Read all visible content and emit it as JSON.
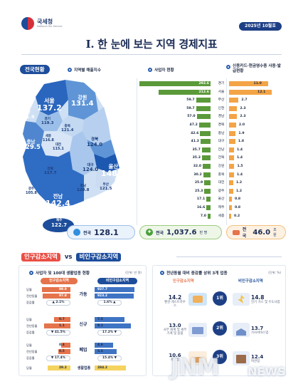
{
  "header": {
    "agency": "국세청",
    "agency_en": "National Tax Service",
    "date": "2025년 10월호",
    "title": "I. 한 눈에 보는 지역 경제지표"
  },
  "national": {
    "section": "전국현황",
    "sub1": "지역별 매출지수",
    "sub2": "사업자 현황",
    "sub3": "신용카드·현금영수증 사용·발급현황",
    "map_regions": [
      {
        "name": "서울",
        "value": "137.2"
      },
      {
        "name": "인천",
        "value": "121.9"
      },
      {
        "name": "경기",
        "value": "119.3"
      },
      {
        "name": "강원",
        "value": "131.4"
      },
      {
        "name": "충북",
        "value": "121.4"
      },
      {
        "name": "세종",
        "value": "116.8"
      },
      {
        "name": "대전",
        "value": "115.1"
      },
      {
        "name": "충남",
        "value": "129.5"
      },
      {
        "name": "경북",
        "value": "124.0"
      },
      {
        "name": "전북",
        "value": "117.7"
      },
      {
        "name": "대구",
        "value": "124.0"
      },
      {
        "name": "울산",
        "value": "148.9"
      },
      {
        "name": "광주",
        "value": "105.8"
      },
      {
        "name": "경남",
        "value": "120.8"
      },
      {
        "name": "부산",
        "value": "121.5"
      },
      {
        "name": "전남",
        "value": "142.4"
      },
      {
        "name": "제주",
        "value": "122.7"
      }
    ],
    "total_sales_label": "전국",
    "total_sales_value": "128.1",
    "total_biz_label": "전국",
    "total_biz_value": "1,037.6",
    "total_biz_unit": "만 명",
    "total_card_label": "전국",
    "total_card_value": "46.0",
    "total_card_unit": "조원",
    "biz_rows": [
      {
        "region": "경기",
        "biz": "292.6",
        "biz_num": 292.6,
        "card": "11.0",
        "card_num": 11.0
      },
      {
        "region": "서울",
        "biz": "212.6",
        "biz_num": 212.6,
        "card": "12.1",
        "card_num": 12.1
      },
      {
        "region": "부산",
        "biz": "59.7",
        "biz_num": 59.7,
        "card": "2.7",
        "card_num": 2.7
      },
      {
        "region": "인천",
        "biz": "59.7",
        "biz_num": 59.7,
        "card": "2.3",
        "card_num": 2.3
      },
      {
        "region": "경남",
        "biz": "57.0",
        "biz_num": 57.0,
        "card": "2.3",
        "card_num": 2.3
      },
      {
        "region": "경북",
        "biz": "47.2",
        "biz_num": 47.2,
        "card": "2.0",
        "card_num": 2.0
      },
      {
        "region": "충남",
        "biz": "42.6",
        "biz_num": 42.6,
        "card": "1.9",
        "card_num": 1.9
      },
      {
        "region": "대구",
        "biz": "41.3",
        "biz_num": 41.3,
        "card": "1.8",
        "card_num": 1.8
      },
      {
        "region": "전남",
        "biz": "35.7",
        "biz_num": 35.7,
        "card": "1.4",
        "card_num": 1.4
      },
      {
        "region": "전북",
        "biz": "35.3",
        "biz_num": 35.3,
        "card": "1.4",
        "card_num": 1.4
      },
      {
        "region": "강원",
        "biz": "32.0",
        "biz_num": 32.0,
        "card": "1.5",
        "card_num": 1.5
      },
      {
        "region": "충북",
        "biz": "30.2",
        "biz_num": 30.2,
        "card": "1.4",
        "card_num": 1.4
      },
      {
        "region": "대전",
        "biz": "25.9",
        "biz_num": 25.9,
        "card": "1.2",
        "card_num": 1.2
      },
      {
        "region": "광주",
        "biz": "25.3",
        "biz_num": 25.3,
        "card": "1.2",
        "card_num": 1.2
      },
      {
        "region": "울산",
        "biz": "17.1",
        "biz_num": 17.1,
        "card": "0.8",
        "card_num": 0.8
      },
      {
        "region": "제주",
        "biz": "16.6",
        "biz_num": 16.6,
        "card": "0.8",
        "card_num": 0.8
      },
      {
        "region": "세종",
        "biz": "7.0",
        "biz_num": 7.0,
        "card": "0.2",
        "card_num": 0.2
      }
    ]
  },
  "compare": {
    "banner_a": "인구감소지역",
    "banner_vs": "vs",
    "banner_b": "비인구감소지역",
    "left_title": "사업자 및 100대 생활업종 현황",
    "left_unit": "(단위: 만 명)",
    "left_head_a": "인구감소지역",
    "left_head_b": "비인구감소지역",
    "groups": [
      {
        "category": "가동",
        "rows": [
          {
            "label": "당월",
            "a": "99.9",
            "a_num": 99.9,
            "b": "937.7",
            "b_num": 937.7
          },
          {
            "label": "전년동월",
            "a": "97.8",
            "a_num": 97.8,
            "b": "923.2",
            "b_num": 923.2
          }
        ],
        "row3_label": "증감률",
        "change_a": "▲ 2.1%",
        "change_b": "1.6% ▲"
      },
      {
        "category": "신규",
        "rows": [
          {
            "label": "당월",
            "a": "0.7",
            "a_num": 0.7,
            "b": "7.5",
            "b_num": 7.5
          },
          {
            "label": "전년동월",
            "a": "1.1",
            "a_num": 1.1,
            "b": "9.1",
            "b_num": 9.1
          }
        ],
        "row3_label": "증감률",
        "change_a": "▼ 41.5%",
        "change_b": "17.2% ▼"
      },
      {
        "category": "폐업",
        "rows": [
          {
            "label": "당월",
            "a": "0.4",
            "a_num": 0.4,
            "b": "4.6",
            "b_num": 4.6
          },
          {
            "label": "전년동월",
            "a": "0.5",
            "a_num": 0.5,
            "b": "5.5",
            "b_num": 5.5
          }
        ],
        "row3_label": "증감률",
        "change_a": "▼ 17.4%",
        "change_b": "15.4% ▼"
      }
    ],
    "life": {
      "label": "당월",
      "category": "생활업종",
      "a": "29.2",
      "a_num": 29.2,
      "b": "284.2",
      "b_num": 284.2
    },
    "right_title": "전년동월 대비 증감률 상위 3개 업종",
    "right_unit": "(단위: %)",
    "right_head_a": "인구감소지역",
    "right_head_b": "비인구감소지역",
    "ranks": [
      {
        "rank": "1위",
        "a_val": "14.2",
        "a_name": "펜션·게스트하우스",
        "b_val": "14.8",
        "b_name": "전기 가스 및 수도사업"
      },
      {
        "rank": "2위",
        "a_val": "13.0",
        "a_name": "사무 회계 및 세무 기계 및 용품",
        "b_val": "13.7",
        "b_name": "가사서비스업"
      },
      {
        "rank": "3위",
        "a_val": "10.6",
        "a_name": "제과점",
        "b_val": "12.4",
        "b_name": "여관업"
      }
    ]
  },
  "colors": {
    "navy": "#1d3f86",
    "green": "#5b9a3a",
    "orange": "#f3a446",
    "red": "#e5734b",
    "blue": "#3f74c4"
  },
  "watermark": {
    "main": "JNM",
    "sub": "NEWS"
  }
}
